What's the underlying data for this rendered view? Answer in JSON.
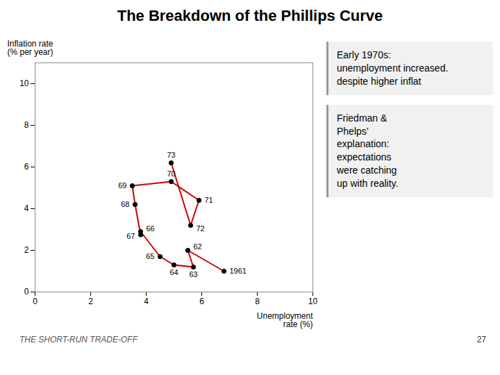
{
  "chart_data": {
    "type": "line",
    "title": "The Breakdown of the Phillips Curve",
    "xlabel": "Unemployment\nrate (%)",
    "ylabel": "Inflation rate\n(% per year)",
    "x": [
      6.8,
      5.5,
      5.7,
      5.0,
      4.5,
      3.8,
      3.8,
      3.6,
      3.5,
      4.9,
      5.9,
      5.6,
      4.9
    ],
    "values": [
      1.0,
      2.0,
      1.2,
      1.3,
      1.7,
      2.9,
      2.75,
      4.2,
      5.1,
      5.3,
      4.4,
      3.2,
      6.2
    ],
    "labels": [
      "1961",
      "62",
      "63",
      "64",
      "65",
      "66",
      "67",
      "68",
      "69",
      "70",
      "71",
      "72",
      "73"
    ],
    "color": "#cc0000",
    "marker": "circle",
    "grid": false,
    "xlim": [
      0,
      10
    ],
    "ylim": [
      0,
      11
    ],
    "xticks": [
      0,
      2,
      4,
      6,
      8,
      10
    ],
    "yticks": [
      0,
      2,
      4,
      6,
      8,
      10
    ],
    "annotations": [
      "Early 1970s:\nunemployment increased.\ndespite higher inflat",
      "Friedman &\nPhelps’\nexplanation:\nexpectations\nwere catching\nup with reality."
    ],
    "footer": "THE SHORT-RUN TRADE-OFF",
    "page_number": "27"
  }
}
